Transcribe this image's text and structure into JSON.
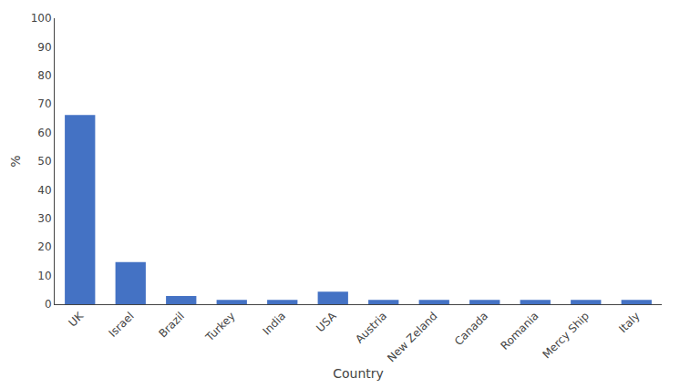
{
  "chart_data": {
    "type": "bar",
    "categories": [
      "UK",
      "Israel",
      "Brazil",
      "Turkey",
      "India",
      "USA",
      "Austria",
      "New Zeland",
      "Canada",
      "Romania",
      "Mercy Ship",
      "Italy"
    ],
    "values": [
      66.2,
      14.7,
      2.9,
      1.5,
      1.5,
      4.4,
      1.5,
      1.5,
      1.5,
      1.5,
      1.5,
      1.5
    ],
    "color": "#4472c4",
    "xlabel": "Country",
    "ylabel": "%",
    "ylim": [
      0,
      100
    ],
    "yticks": [
      0,
      10,
      20,
      30,
      40,
      50,
      60,
      70,
      80,
      90,
      100
    ],
    "grid": false
  }
}
